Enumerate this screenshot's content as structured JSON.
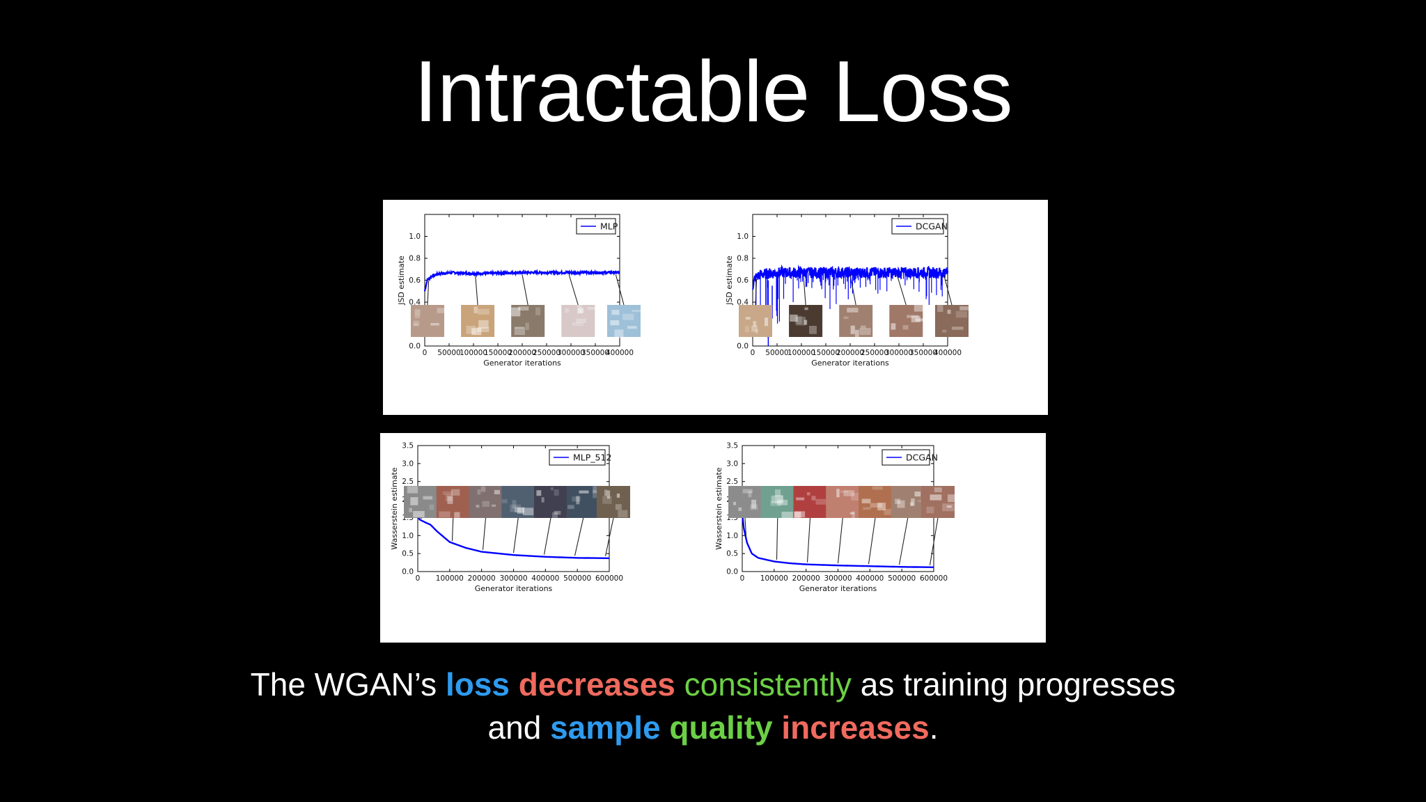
{
  "slide": {
    "title": "Intractable Loss",
    "caption": {
      "line1": [
        {
          "text": "The WGAN’s ",
          "color": "#ffffff",
          "bold": false
        },
        {
          "text": "loss",
          "color": "#2e9bef",
          "bold": true
        },
        {
          "text": " ",
          "color": "#ffffff",
          "bold": false
        },
        {
          "text": "decreases",
          "color": "#f06a5e",
          "bold": true
        },
        {
          "text": " ",
          "color": "#ffffff",
          "bold": false
        },
        {
          "text": "consistently",
          "color": "#6cd046",
          "bold": false
        },
        {
          "text": " as training progresses",
          "color": "#ffffff",
          "bold": false
        }
      ],
      "line2": [
        {
          "text": "and ",
          "color": "#ffffff",
          "bold": false
        },
        {
          "text": "sample",
          "color": "#2e9bef",
          "bold": true
        },
        {
          "text": " ",
          "color": "#ffffff",
          "bold": false
        },
        {
          "text": "quality",
          "color": "#6cd046",
          "bold": true
        },
        {
          "text": " ",
          "color": "#ffffff",
          "bold": false
        },
        {
          "text": "increases",
          "color": "#f06a5e",
          "bold": true
        },
        {
          "text": ".",
          "color": "#ffffff",
          "bold": false
        }
      ]
    }
  },
  "chart_data": [
    {
      "type": "line",
      "legend": "MLP",
      "xlabel": "Generator iterations",
      "ylabel": "JSD estimate",
      "xlim": [
        0,
        400000
      ],
      "ylim": [
        0,
        1.2
      ],
      "xticks": [
        0,
        50000,
        100000,
        150000,
        200000,
        250000,
        300000,
        350000,
        400000
      ],
      "yticks": [
        0.0,
        0.2,
        0.4,
        0.6,
        0.8,
        1.0
      ],
      "ytick_labels": [
        "0.0",
        "",
        "0.4",
        "0.6",
        "0.8",
        "1.0"
      ],
      "series": [
        {
          "name": "MLP",
          "x": [
            0,
            5000,
            15000,
            30000,
            60000,
            100000,
            200000,
            300000,
            400000
          ],
          "y": [
            0.5,
            0.6,
            0.64,
            0.66,
            0.67,
            0.66,
            0.67,
            0.67,
            0.67
          ]
        }
      ],
      "noise": 0.01,
      "samples_shown": 5,
      "color": "#0000ff"
    },
    {
      "type": "line",
      "legend": "DCGAN",
      "xlabel": "Generator iterations",
      "ylabel": "JSD estimate",
      "xlim": [
        0,
        400000
      ],
      "ylim": [
        0,
        1.2
      ],
      "xticks": [
        0,
        50000,
        100000,
        150000,
        200000,
        250000,
        300000,
        350000,
        400000
      ],
      "yticks": [
        0.0,
        0.2,
        0.4,
        0.6,
        0.8,
        1.0
      ],
      "ytick_labels": [
        "0.0",
        "",
        "0.4",
        "0.6",
        "0.8",
        "1.0"
      ],
      "series": [
        {
          "name": "DCGAN",
          "x": [
            0,
            5000,
            15000,
            30000,
            60000,
            100000,
            200000,
            300000,
            400000
          ],
          "y": [
            0.55,
            0.62,
            0.65,
            0.66,
            0.67,
            0.67,
            0.67,
            0.67,
            0.67
          ]
        }
      ],
      "noise": 0.05,
      "spikes": true,
      "samples_shown": 5,
      "color": "#0000ff"
    },
    {
      "type": "line",
      "legend": "MLP_512",
      "xlabel": "Generator iterations",
      "ylabel": "Wasserstein estimate",
      "xlim": [
        0,
        600000
      ],
      "ylim": [
        0,
        3.5
      ],
      "xticks": [
        0,
        100000,
        200000,
        300000,
        400000,
        500000,
        600000
      ],
      "yticks": [
        0.0,
        0.5,
        1.0,
        1.5,
        2.0,
        2.5,
        3.0,
        3.5
      ],
      "series": [
        {
          "name": "MLP_512",
          "x": [
            0,
            5000,
            20000,
            40000,
            60000,
            100000,
            150000,
            200000,
            300000,
            400000,
            500000,
            600000
          ],
          "y": [
            1.6,
            1.45,
            1.38,
            1.3,
            1.12,
            0.82,
            0.66,
            0.55,
            0.46,
            0.41,
            0.38,
            0.37
          ]
        }
      ],
      "samples_shown": 7,
      "color": "#0000ff"
    },
    {
      "type": "line",
      "legend": "DCGAN",
      "xlabel": "Generator iterations",
      "ylabel": "Wasserstein estimate",
      "xlim": [
        0,
        600000
      ],
      "ylim": [
        0,
        3.5
      ],
      "xticks": [
        0,
        100000,
        200000,
        300000,
        400000,
        500000,
        600000
      ],
      "yticks": [
        0.0,
        0.5,
        1.0,
        1.5,
        2.0,
        2.5,
        3.0,
        3.5
      ],
      "series": [
        {
          "name": "DCGAN",
          "x": [
            0,
            5000,
            15000,
            30000,
            50000,
            80000,
            100000,
            150000,
            200000,
            300000,
            400000,
            500000,
            600000
          ],
          "y": [
            1.6,
            1.2,
            0.8,
            0.5,
            0.38,
            0.32,
            0.28,
            0.23,
            0.2,
            0.17,
            0.15,
            0.13,
            0.12
          ]
        }
      ],
      "samples_shown": 7,
      "color": "#0000ff"
    }
  ]
}
